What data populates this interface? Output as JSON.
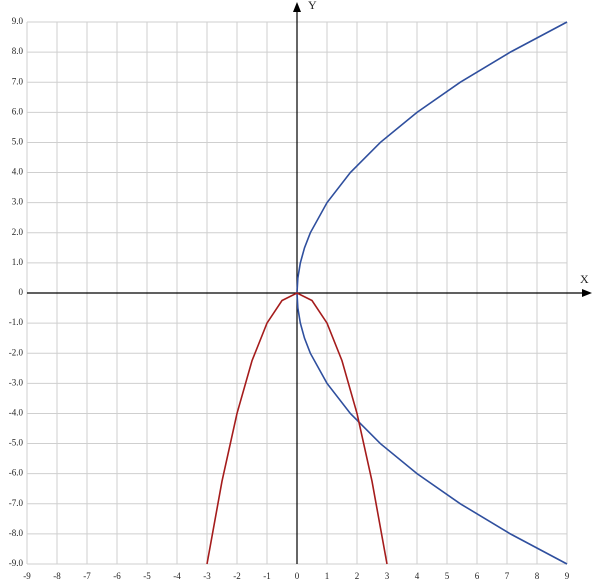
{
  "chart_data": {
    "type": "line",
    "x_label": "X",
    "y_label": "Y",
    "xlim": [
      -9,
      9
    ],
    "ylim": [
      -9,
      9
    ],
    "xticks": [
      -9,
      -8,
      -7,
      -6,
      -5,
      -4,
      -3,
      -2,
      -1,
      0,
      1,
      2,
      3,
      4,
      5,
      6,
      7,
      8,
      9
    ],
    "yticks": [
      {
        "value": -9,
        "label": "-9.0"
      },
      {
        "value": -8,
        "label": "-8.0"
      },
      {
        "value": -7,
        "label": "-7.0"
      },
      {
        "value": -6,
        "label": "-6.0"
      },
      {
        "value": -5,
        "label": "-5.0"
      },
      {
        "value": -4,
        "label": "-4.0"
      },
      {
        "value": -3,
        "label": "-3.0"
      },
      {
        "value": -2,
        "label": "-2.0"
      },
      {
        "value": -1,
        "label": "-1.0"
      },
      0,
      {
        "value": 1,
        "label": "1.0"
      },
      {
        "value": 2,
        "label": "2.0"
      },
      {
        "value": 3,
        "label": "3.0"
      },
      {
        "value": 4,
        "label": "4.0"
      },
      {
        "value": 5,
        "label": "5.0"
      },
      {
        "value": 6,
        "label": "6.0"
      },
      {
        "value": 7,
        "label": "7.0"
      },
      {
        "value": 8,
        "label": "8.0"
      },
      {
        "value": 9,
        "label": "9.0"
      }
    ],
    "grid": true,
    "series": [
      {
        "color": "#2f4f9e",
        "x": [
          9,
          7.111,
          5.444,
          4,
          2.778,
          1.778,
          1,
          0.444,
          0.25,
          0.111,
          0.028,
          0,
          0.028,
          0.111,
          0.25,
          0.444,
          1,
          1.778,
          2.778,
          4,
          5.444,
          7.111,
          9
        ],
        "values": [
          -9,
          -8,
          -7,
          -6,
          -5,
          -4,
          -3,
          -2,
          -1.5,
          -1,
          -0.5,
          0,
          0.5,
          1,
          1.5,
          2,
          3,
          4,
          5,
          6,
          7,
          8,
          9
        ]
      },
      {
        "color": "#a51c1c",
        "x": [
          -3,
          -2.5,
          -2,
          -1.5,
          -1,
          -0.5,
          0,
          0.5,
          1,
          1.5,
          2,
          2.5,
          3
        ],
        "values": [
          -9,
          -6.25,
          -4,
          -2.25,
          -1,
          -0.25,
          0,
          -0.25,
          -1,
          -2.25,
          -4,
          -6.25,
          -9
        ]
      }
    ]
  }
}
